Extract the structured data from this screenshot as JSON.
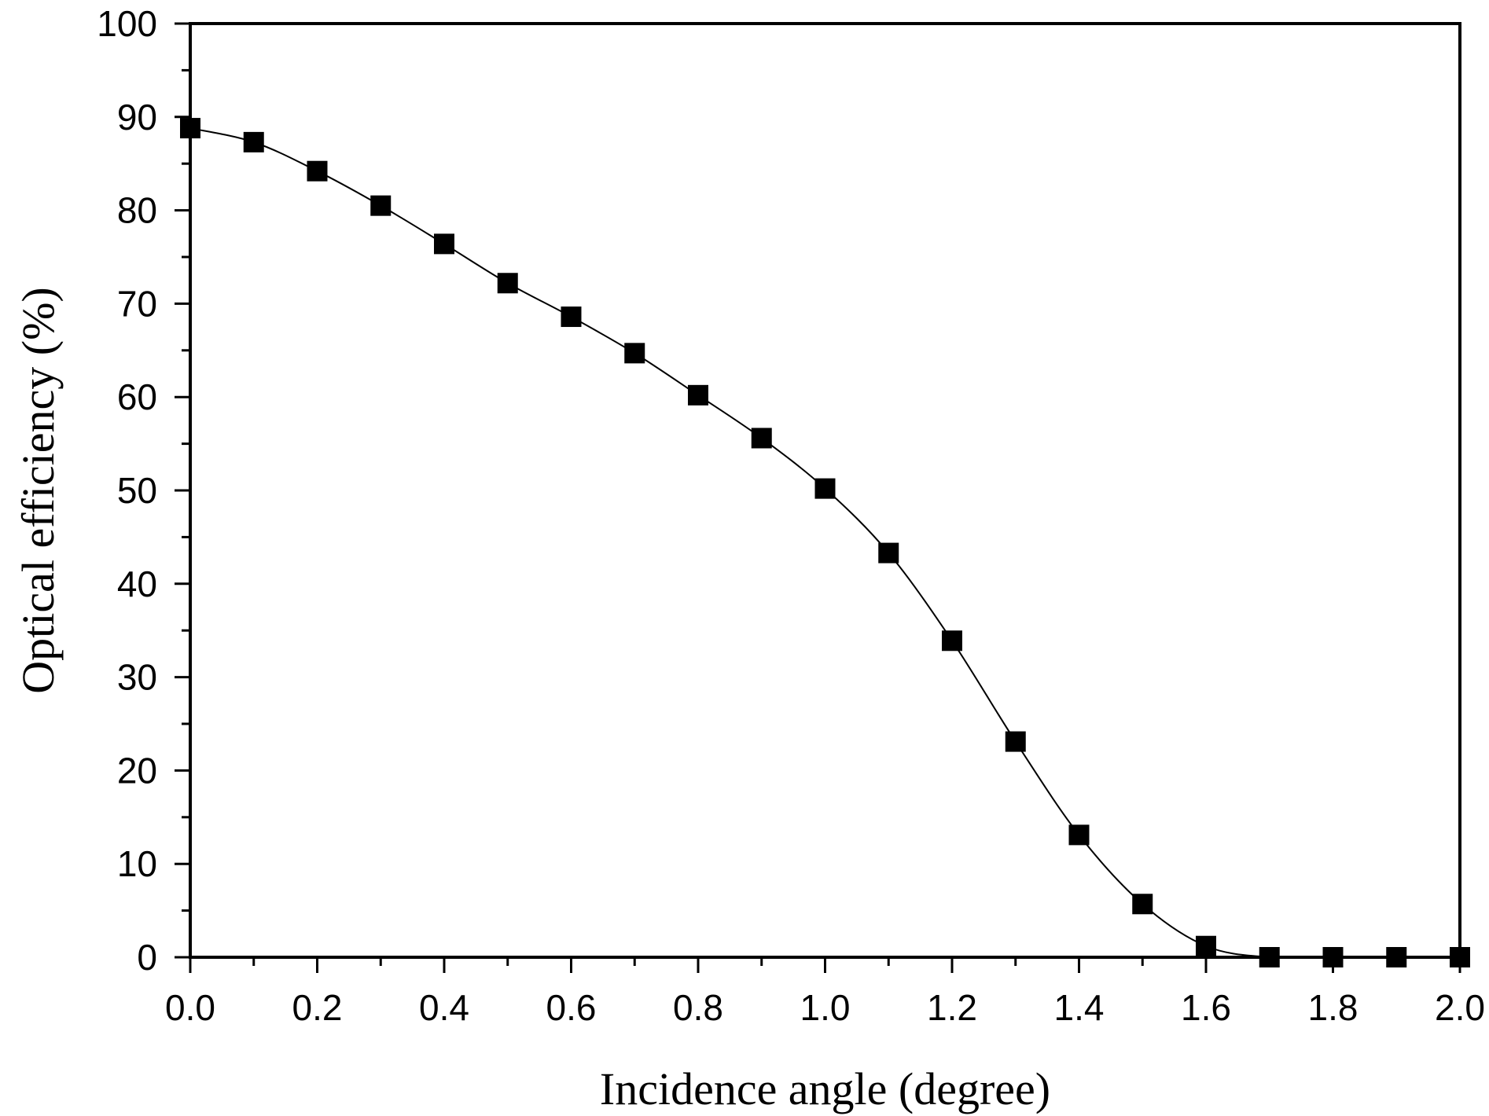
{
  "chart_data": {
    "type": "line",
    "xlabel": "Incidence angle (degree)",
    "ylabel": "Optical efficiency (%)",
    "xlim": [
      0.0,
      2.0
    ],
    "ylim": [
      0,
      100
    ],
    "x_ticks": [
      "0.0",
      "0.2",
      "0.4",
      "0.6",
      "0.8",
      "1.0",
      "1.2",
      "1.4",
      "1.6",
      "1.8",
      "2.0"
    ],
    "y_ticks": [
      "0",
      "10",
      "20",
      "30",
      "40",
      "50",
      "60",
      "70",
      "80",
      "90",
      "100"
    ],
    "grid": false,
    "marker": "square",
    "series": [
      {
        "x": [
          0.0,
          0.1,
          0.2,
          0.3,
          0.4,
          0.5,
          0.6,
          0.7,
          0.8,
          0.9,
          1.0,
          1.1,
          1.2,
          1.3,
          1.4,
          1.5,
          1.6,
          1.7,
          1.8,
          1.9,
          2.0
        ],
        "y": [
          88.8,
          87.3,
          84.2,
          80.5,
          76.4,
          72.2,
          68.6,
          64.7,
          60.2,
          55.6,
          50.2,
          43.3,
          33.9,
          23.1,
          13.1,
          5.7,
          1.2,
          0.0,
          0.0,
          0.0,
          0.0
        ],
        "color": "#000000"
      }
    ]
  }
}
